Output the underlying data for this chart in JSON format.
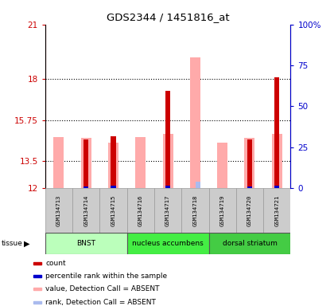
{
  "title": "GDS2344 / 1451816_at",
  "samples": [
    "GSM134713",
    "GSM134714",
    "GSM134715",
    "GSM134716",
    "GSM134717",
    "GSM134718",
    "GSM134719",
    "GSM134720",
    "GSM134721"
  ],
  "ylim_left": [
    12,
    21
  ],
  "ylim_right": [
    0,
    100
  ],
  "yticks_left": [
    12,
    13.5,
    15.75,
    18,
    21
  ],
  "yticks_right": [
    0,
    25,
    50,
    75,
    100
  ],
  "yticklabels_right": [
    "0",
    "25",
    "50",
    "75",
    "100%"
  ],
  "grid_lines": [
    13.5,
    15.75,
    18
  ],
  "absent_value": [
    14.8,
    14.75,
    14.5,
    14.8,
    15.0,
    19.2,
    14.5,
    14.75,
    15.0
  ],
  "absent_rank": [
    null,
    null,
    null,
    null,
    null,
    12.35,
    null,
    null,
    null
  ],
  "count_value": [
    null,
    14.7,
    14.85,
    null,
    17.35,
    null,
    null,
    14.7,
    18.1
  ],
  "rank_value": [
    null,
    12.1,
    12.15,
    null,
    12.15,
    null,
    null,
    12.1,
    12.15
  ],
  "tissue_groups": [
    {
      "label": "BNST",
      "start": 0,
      "end": 3,
      "color": "#ccffcc"
    },
    {
      "label": "nucleus accumbens",
      "start": 3,
      "end": 6,
      "color": "#44ee44"
    },
    {
      "label": "dorsal striatum",
      "start": 6,
      "end": 9,
      "color": "#55dd55"
    }
  ],
  "legend_items": [
    {
      "color": "#cc0000",
      "label": "count"
    },
    {
      "color": "#0000cc",
      "label": "percentile rank within the sample"
    },
    {
      "color": "#ffaaaa",
      "label": "value, Detection Call = ABSENT"
    },
    {
      "color": "#aabbee",
      "label": "rank, Detection Call = ABSENT"
    }
  ],
  "bar_absent_color": "#ffaaaa",
  "bar_rank_absent_color": "#aabbee",
  "bar_count_color": "#cc0000",
  "bar_prank_color": "#0000cc",
  "tick_color_left": "#cc0000",
  "tick_color_right": "#0000cc",
  "absent_bar_width": 0.38,
  "count_bar_width": 0.18,
  "rank_bar_width": 0.18
}
